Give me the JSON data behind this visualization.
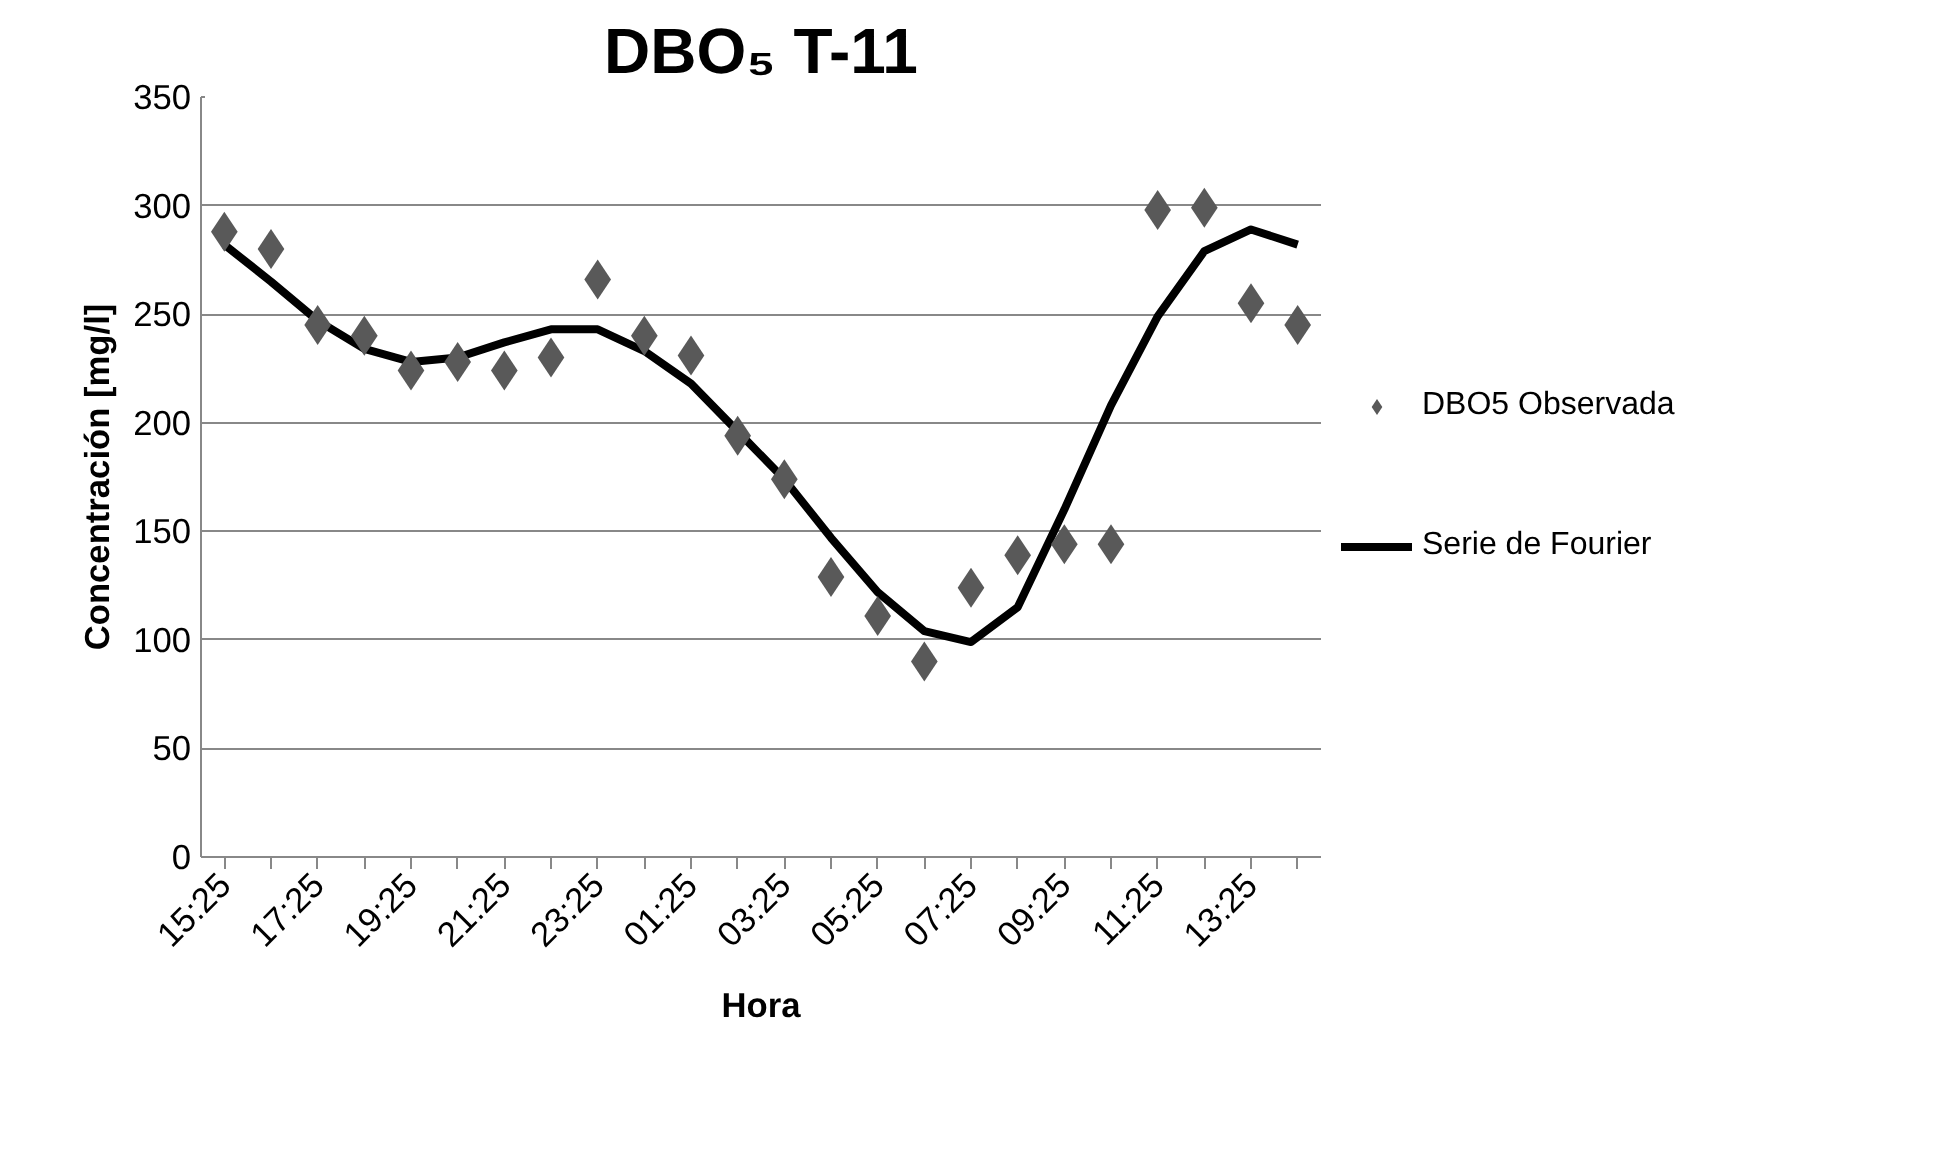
{
  "chart_data": {
    "type": "scatter",
    "title": "DBO₅ T-11",
    "xlabel": "Hora",
    "ylabel": "Concentración [mg/l]",
    "categories": [
      "15:25",
      null,
      "17:25",
      null,
      "19:25",
      null,
      "21:25",
      null,
      "23:25",
      null,
      "01:25",
      null,
      "03:25",
      null,
      "05:25",
      null,
      "07:25",
      null,
      "09:25",
      null,
      "11:25",
      null,
      "13:25",
      null
    ],
    "series": [
      {
        "name": "DBO5 Observada",
        "marker": "diamond",
        "color": "#595959",
        "values": [
          288,
          280,
          245,
          240,
          224,
          228,
          224,
          230,
          266,
          240,
          231,
          194,
          174,
          129,
          111,
          90,
          124,
          139,
          144,
          144,
          298,
          299,
          255,
          245
        ]
      },
      {
        "name": "Serie de Fourier",
        "type": "line",
        "color": "#000000",
        "values": [
          282,
          265,
          247,
          234,
          228,
          230,
          237,
          243,
          243,
          233,
          218,
          196,
          174,
          147,
          122,
          104,
          99,
          115,
          160,
          208,
          249,
          279,
          289,
          282
        ]
      }
    ],
    "ylim": [
      0,
      350
    ],
    "yticks": [
      0,
      50,
      100,
      150,
      200,
      250,
      300,
      350
    ],
    "grid": "y",
    "legend": "right"
  }
}
